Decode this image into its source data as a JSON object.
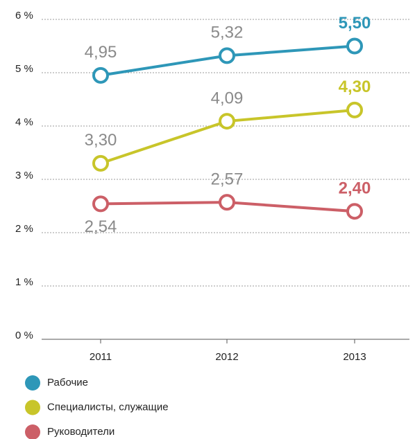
{
  "chart_data": {
    "type": "line",
    "categories": [
      "2011",
      "2012",
      "2013"
    ],
    "series": [
      {
        "name": "Рабочие",
        "color": "#2e97b8",
        "values": [
          4.95,
          5.32,
          5.5
        ],
        "value_labels": [
          "4,95",
          "5,32",
          "5,50"
        ]
      },
      {
        "name": "Специалисты, служащие",
        "color": "#c8c52a",
        "values": [
          3.3,
          4.09,
          4.3
        ],
        "value_labels": [
          "3,30",
          "4,09",
          "4,30"
        ]
      },
      {
        "name": "Руководители",
        "color": "#cc5f67",
        "values": [
          2.54,
          2.57,
          2.4
        ],
        "value_labels": [
          "2,54",
          "2,57",
          "2,40"
        ]
      }
    ],
    "ylim": [
      0,
      6
    ],
    "yticks": [
      {
        "value": 0,
        "label": "0 %"
      },
      {
        "value": 1,
        "label": "1 %"
      },
      {
        "value": 2,
        "label": "2 %"
      },
      {
        "value": 3,
        "label": "3 %"
      },
      {
        "value": 4,
        "label": "4 %"
      },
      {
        "value": 5,
        "label": "5 %"
      },
      {
        "value": 6,
        "label": "6 %"
      }
    ],
    "grid": true,
    "legend": "bottom"
  }
}
